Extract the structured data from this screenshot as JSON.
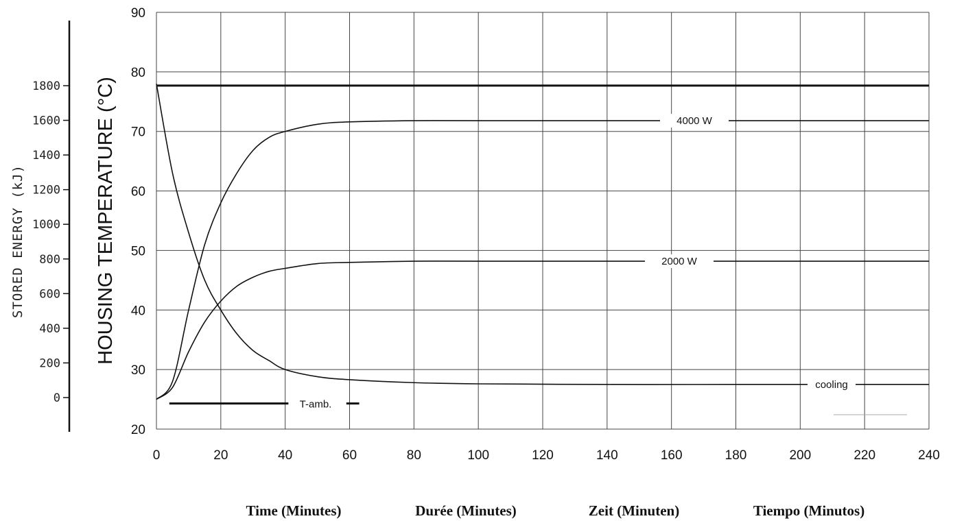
{
  "chart_data": {
    "type": "line",
    "xlim": [
      0,
      240
    ],
    "ylim": [
      20,
      90
    ],
    "x_ticks": [
      "0",
      "20",
      "40",
      "60",
      "80",
      "100",
      "120",
      "140",
      "160",
      "180",
      "200",
      "220",
      "240"
    ],
    "y_ticks": [
      "20",
      "30",
      "40",
      "50",
      "60",
      "70",
      "80",
      "90"
    ],
    "secondary_y_ticks": [
      "0",
      "200",
      "400",
      "600",
      "800",
      "1000",
      "1200",
      "1400",
      "1600",
      "1800"
    ],
    "secondary_ylim": [
      0,
      1800
    ],
    "ylabel": "HOUSING TEMPERATURE (°C)",
    "secondary_ylabel": "STORED ENERGY   (kJ)",
    "xlabels": [
      "Time  (Minutes)",
      "Durée  (Minutes)",
      "Zeit  (Minuten)",
      "Tiempo  (Minutos)"
    ],
    "grid": true,
    "series": [
      {
        "name": "4000 W",
        "x": [
          0,
          5,
          10,
          15,
          20,
          25,
          30,
          35,
          40,
          50,
          60,
          80,
          100,
          140,
          180,
          240
        ],
        "y": [
          25,
          28,
          40,
          51,
          58,
          63,
          66.8,
          69,
          70,
          71.2,
          71.6,
          71.8,
          71.8,
          71.8,
          71.8,
          71.8
        ]
      },
      {
        "name": "2000 W",
        "x": [
          0,
          5,
          10,
          15,
          20,
          25,
          30,
          35,
          40,
          50,
          60,
          80,
          100,
          140,
          180,
          240
        ],
        "y": [
          25,
          27,
          33,
          38,
          41.5,
          44,
          45.5,
          46.5,
          47,
          47.8,
          48,
          48.2,
          48.2,
          48.2,
          48.2,
          48.2
        ]
      },
      {
        "name": "cooling",
        "x": [
          0,
          5,
          10,
          15,
          20,
          25,
          30,
          35,
          40,
          50,
          60,
          80,
          100,
          140,
          180,
          240
        ],
        "y": [
          78,
          63,
          53,
          45,
          40,
          36,
          33.2,
          31.5,
          30,
          28.8,
          28.3,
          27.8,
          27.6,
          27.5,
          27.5,
          27.5
        ]
      }
    ],
    "annotations": [
      {
        "text": "T-amb.",
        "y": 25
      },
      {
        "text": "",
        "y": 77.7
      }
    ]
  }
}
